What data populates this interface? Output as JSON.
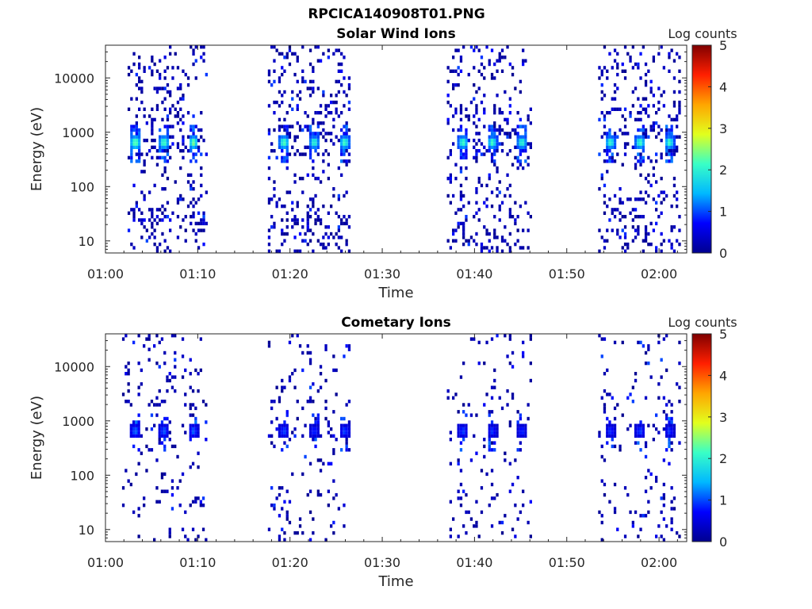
{
  "figure_title": "RPCICA140908T01.PNG",
  "colormap_stops": [
    "#00008f",
    "#0000ff",
    "#00b8ff",
    "#39ffc6",
    "#e2ff1d",
    "#ffa500",
    "#ff1f00",
    "#800000"
  ],
  "chart_data": [
    {
      "type": "heatmap",
      "title": "Solar Wind Ions",
      "xlabel": "Time",
      "ylabel": "Energy (eV)",
      "xlim": [
        "01:00",
        "02:03"
      ],
      "xticks": [
        "01:00",
        "01:10",
        "01:20",
        "01:30",
        "01:40",
        "01:50",
        "02:00"
      ],
      "yscale": "log",
      "ylim": [
        6,
        40000
      ],
      "yticks": [
        "10",
        "100",
        "1000",
        "10000"
      ],
      "colorbar": {
        "label": "Log counts",
        "ticks": [
          "0",
          "1",
          "2",
          "3",
          "4",
          "5"
        ],
        "range": [
          0,
          5
        ]
      },
      "scan_intervals_minutes": [
        [
          2.4,
          10.9
        ],
        [
          17.6,
          26.4
        ],
        [
          37.0,
          46.1
        ],
        [
          53.4,
          62.2
        ]
      ],
      "hot_spots": [
        {
          "time_min": 3.1,
          "energy_ev": 650,
          "log_counts": 3.0
        },
        {
          "time_min": 6.2,
          "energy_ev": 650,
          "log_counts": 2.8
        },
        {
          "time_min": 9.4,
          "energy_ev": 650,
          "log_counts": 2.8
        },
        {
          "time_min": 19.2,
          "energy_ev": 650,
          "log_counts": 2.8
        },
        {
          "time_min": 22.5,
          "energy_ev": 650,
          "log_counts": 2.6
        },
        {
          "time_min": 25.8,
          "energy_ev": 650,
          "log_counts": 2.7
        },
        {
          "time_min": 38.6,
          "energy_ev": 650,
          "log_counts": 2.7
        },
        {
          "time_min": 41.8,
          "energy_ev": 650,
          "log_counts": 2.6
        },
        {
          "time_min": 45.0,
          "energy_ev": 650,
          "log_counts": 2.6
        },
        {
          "time_min": 54.6,
          "energy_ev": 650,
          "log_counts": 2.6
        },
        {
          "time_min": 57.8,
          "energy_ev": 650,
          "log_counts": 2.7
        },
        {
          "time_min": 61.0,
          "energy_ev": 650,
          "log_counts": 2.6
        }
      ]
    },
    {
      "type": "heatmap",
      "title": "Cometary Ions",
      "xlabel": "Time",
      "ylabel": "Energy (eV)",
      "xlim": [
        "01:00",
        "02:03"
      ],
      "xticks": [
        "01:00",
        "01:10",
        "01:20",
        "01:30",
        "01:40",
        "01:50",
        "02:00"
      ],
      "yscale": "log",
      "ylim": [
        6,
        40000
      ],
      "yticks": [
        "10",
        "100",
        "1000",
        "10000"
      ],
      "colorbar": {
        "label": "Log counts",
        "ticks": [
          "0",
          "1",
          "2",
          "3",
          "4",
          "5"
        ],
        "range": [
          0,
          5
        ]
      },
      "scan_intervals_minutes": [
        [
          1.8,
          10.9
        ],
        [
          17.6,
          26.4
        ],
        [
          37.0,
          46.1
        ],
        [
          53.4,
          62.2
        ]
      ],
      "hot_spots": [
        {
          "time_min": 3.1,
          "energy_ev": 650,
          "log_counts": 1.4
        },
        {
          "time_min": 6.2,
          "energy_ev": 650,
          "log_counts": 1.3
        },
        {
          "time_min": 9.4,
          "energy_ev": 650,
          "log_counts": 1.3
        },
        {
          "time_min": 19.2,
          "energy_ev": 650,
          "log_counts": 1.2
        },
        {
          "time_min": 22.5,
          "energy_ev": 650,
          "log_counts": 1.1
        },
        {
          "time_min": 25.8,
          "energy_ev": 650,
          "log_counts": 1.2
        },
        {
          "time_min": 38.6,
          "energy_ev": 650,
          "log_counts": 1.2
        },
        {
          "time_min": 41.8,
          "energy_ev": 650,
          "log_counts": 1.1
        },
        {
          "time_min": 45.0,
          "energy_ev": 650,
          "log_counts": 1.1
        },
        {
          "time_min": 54.6,
          "energy_ev": 650,
          "log_counts": 1.1
        },
        {
          "time_min": 57.8,
          "energy_ev": 650,
          "log_counts": 1.2
        },
        {
          "time_min": 61.0,
          "energy_ev": 650,
          "log_counts": 1.1
        }
      ]
    }
  ]
}
